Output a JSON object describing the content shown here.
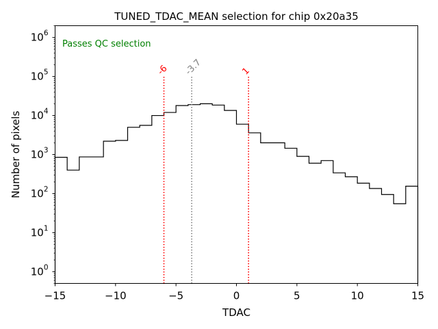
{
  "chart_data": {
    "type": "histogram",
    "title": "TUNED_TDAC_MEAN selection for chip 0x20a35",
    "xlabel": "TDAC",
    "ylabel": "Number of pixels",
    "xlim": [
      -15,
      15
    ],
    "ylim": [
      0.5,
      2000000
    ],
    "yscale": "log",
    "xticks": [
      -15,
      -10,
      -5,
      0,
      5,
      10,
      15
    ],
    "xtick_labels": [
      "−15",
      "−10",
      "−5",
      "0",
      "5",
      "10",
      "15"
    ],
    "yticks": [
      1,
      10,
      100,
      1000,
      10000,
      100000,
      1000000
    ],
    "ytick_base": "10",
    "ytick_exponents": [
      "0",
      "1",
      "2",
      "3",
      "4",
      "5",
      "6"
    ],
    "bin_edges": [
      -15,
      -14,
      -13,
      -12,
      -11,
      -10,
      -9,
      -8,
      -7,
      -6,
      -5,
      -4,
      -3,
      -2,
      -1,
      0,
      1,
      2,
      3,
      4,
      5,
      6,
      7,
      8,
      9,
      10,
      11,
      12,
      13,
      14,
      15
    ],
    "counts": [
      850,
      400,
      870,
      870,
      2200,
      2300,
      5000,
      5600,
      10000,
      12000,
      18000,
      19000,
      20000,
      18500,
      13500,
      6000,
      3600,
      2000,
      2000,
      1450,
      900,
      600,
      700,
      340,
      270,
      185,
      135,
      95,
      55,
      155
    ],
    "vlines": [
      {
        "x": -6,
        "label": "-6",
        "color": "#ff0000",
        "ymax": 100000
      },
      {
        "x": -3.7,
        "label": "-3.7",
        "color": "#808080",
        "ymax": 100000
      },
      {
        "x": 1,
        "label": "1",
        "color": "#ff0000",
        "ymax": 100000
      }
    ],
    "annotation": "Passes QC selection",
    "annotation_color": "#008000",
    "line_color": "#000000"
  }
}
